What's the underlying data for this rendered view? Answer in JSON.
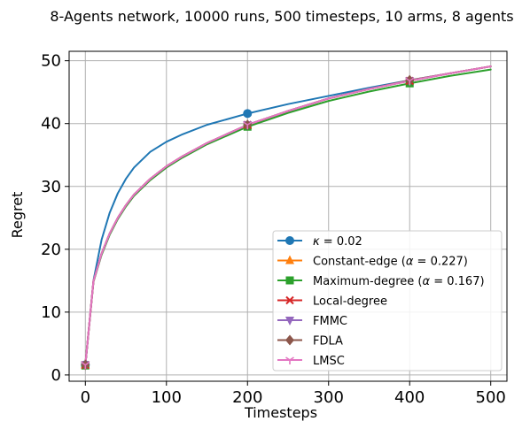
{
  "chart_data": {
    "type": "line",
    "title": "8-Agents network, 10000 runs, 500 timesteps, 10 arms, 8 agents",
    "xlabel": "Timesteps",
    "ylabel": "Regret",
    "xlim": [
      -20,
      520
    ],
    "ylim": [
      -1,
      51.5
    ],
    "xticks": [
      0,
      100,
      200,
      300,
      400,
      500
    ],
    "yticks": [
      0,
      10,
      20,
      30,
      40,
      50
    ],
    "grid": true,
    "legend_position": "lower-right",
    "series": [
      {
        "name": "κ = 0.02",
        "label_parts": {
          "symbol": "κ",
          "rest": " = 0.02"
        },
        "color": "#1f77b4",
        "marker": "circle",
        "x": [
          0,
          10,
          20,
          30,
          40,
          50,
          60,
          80,
          100,
          120,
          150,
          200,
          250,
          300,
          350,
          400,
          450,
          500
        ],
        "y": [
          1.6,
          15.0,
          21.5,
          25.8,
          28.9,
          31.2,
          33.0,
          35.5,
          37.1,
          38.3,
          39.8,
          41.6,
          43.1,
          44.4,
          45.7,
          46.9,
          48.0,
          49.1
        ],
        "marker_at": [
          0,
          200
        ]
      },
      {
        "name": "Constant-edge (α = 0.227)",
        "label_parts": {
          "pre": "Constant-edge (",
          "symbol": "α",
          "post": " = 0.227)"
        },
        "color": "#ff7f0e",
        "marker": "triangle-up",
        "x": [
          0,
          10,
          20,
          30,
          40,
          50,
          60,
          80,
          100,
          120,
          150,
          200,
          250,
          300,
          350,
          400,
          450,
          500
        ],
        "y": [
          1.6,
          14.9,
          19.3,
          22.5,
          25.0,
          27.0,
          28.7,
          31.2,
          33.2,
          34.8,
          36.9,
          39.7,
          42.0,
          44.0,
          45.5,
          46.8,
          48.0,
          49.1
        ],
        "marker_at": [
          0,
          200,
          400
        ]
      },
      {
        "name": "Maximum-degree (α = 0.167)",
        "label_parts": {
          "pre": "Maximum-degree (",
          "symbol": "α",
          "post": " = 0.167)"
        },
        "color": "#2ca02c",
        "marker": "square",
        "x": [
          0,
          10,
          20,
          30,
          40,
          50,
          60,
          80,
          100,
          120,
          150,
          200,
          250,
          300,
          350,
          400,
          450,
          500
        ],
        "y": [
          1.5,
          14.8,
          19.1,
          22.3,
          24.8,
          26.8,
          28.5,
          31.0,
          33.0,
          34.6,
          36.7,
          39.5,
          41.7,
          43.6,
          45.1,
          46.4,
          47.6,
          48.6
        ],
        "marker_at": [
          0,
          200,
          400
        ]
      },
      {
        "name": "Local-degree",
        "color": "#d62728",
        "marker": "x",
        "x": [
          0,
          10,
          20,
          30,
          40,
          50,
          60,
          80,
          100,
          120,
          150,
          200,
          250,
          300,
          350,
          400,
          450,
          500
        ],
        "y": [
          1.6,
          14.9,
          19.3,
          22.5,
          25.0,
          27.0,
          28.7,
          31.2,
          33.2,
          34.8,
          36.9,
          39.8,
          42.0,
          44.0,
          45.5,
          46.8,
          48.0,
          49.1
        ],
        "marker_at": [
          0,
          200,
          400
        ]
      },
      {
        "name": "FMMC",
        "color": "#9467bd",
        "marker": "triangle-down",
        "x": [
          0,
          10,
          20,
          30,
          40,
          50,
          60,
          80,
          100,
          120,
          150,
          200,
          250,
          300,
          350,
          400,
          450,
          500
        ],
        "y": [
          1.6,
          14.9,
          19.3,
          22.5,
          25.0,
          27.0,
          28.7,
          31.2,
          33.2,
          34.8,
          36.9,
          39.8,
          42.0,
          44.0,
          45.5,
          46.8,
          48.0,
          49.1
        ],
        "marker_at": [
          0,
          200,
          400
        ]
      },
      {
        "name": "FDLA",
        "color": "#8c564b",
        "marker": "diamond",
        "x": [
          0,
          10,
          20,
          30,
          40,
          50,
          60,
          80,
          100,
          120,
          150,
          200,
          250,
          300,
          350,
          400,
          450,
          500
        ],
        "y": [
          1.6,
          14.9,
          19.3,
          22.5,
          25.0,
          27.0,
          28.7,
          31.2,
          33.2,
          34.8,
          36.9,
          39.8,
          42.0,
          44.0,
          45.5,
          46.9,
          48.0,
          49.1
        ],
        "marker_at": [
          0,
          200,
          400
        ]
      },
      {
        "name": "LMSC",
        "color": "#e377c2",
        "marker": "tri-down",
        "x": [
          0,
          10,
          20,
          30,
          40,
          50,
          60,
          80,
          100,
          120,
          150,
          200,
          250,
          300,
          350,
          400,
          450,
          500
        ],
        "y": [
          1.6,
          14.9,
          19.3,
          22.5,
          25.0,
          27.0,
          28.7,
          31.2,
          33.2,
          34.8,
          36.9,
          39.8,
          42.0,
          44.0,
          45.5,
          46.8,
          48.0,
          49.1
        ],
        "marker_at": [
          0,
          200,
          400
        ]
      }
    ]
  }
}
